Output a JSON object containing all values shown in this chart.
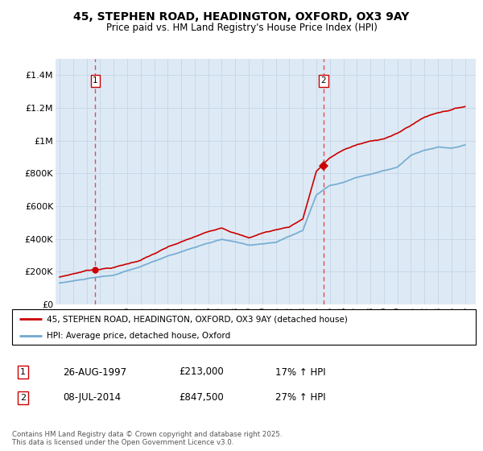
{
  "title_line1": "45, STEPHEN ROAD, HEADINGTON, OXFORD, OX3 9AY",
  "title_line2": "Price paid vs. HM Land Registry's House Price Index (HPI)",
  "ylim": [
    0,
    1500000
  ],
  "yticks": [
    0,
    200000,
    400000,
    600000,
    800000,
    1000000,
    1200000,
    1400000
  ],
  "ytick_labels": [
    "£0",
    "£200K",
    "£400K",
    "£600K",
    "£800K",
    "£1M",
    "£1.2M",
    "£1.4M"
  ],
  "xlim_start": 1994.7,
  "xlim_end": 2025.8,
  "hpi_color": "#6fa8d0",
  "price_color": "#cc0000",
  "bg_color": "#ddeaf5",
  "grid_color": "#c8d8e8",
  "sale1_x": 1997.648,
  "sale1_y": 213000,
  "sale1_label": "1",
  "sale2_x": 2014.52,
  "sale2_y": 847500,
  "sale2_label": "2",
  "legend_line1": "45, STEPHEN ROAD, HEADINGTON, OXFORD, OX3 9AY (detached house)",
  "legend_line2": "HPI: Average price, detached house, Oxford",
  "table_row1": [
    "1",
    "26-AUG-1997",
    "£213,000",
    "17% ↑ HPI"
  ],
  "table_row2": [
    "2",
    "08-JUL-2014",
    "£847,500",
    "27% ↑ HPI"
  ],
  "footnote": "Contains HM Land Registry data © Crown copyright and database right 2025.\nThis data is licensed under the Open Government Licence v3.0."
}
